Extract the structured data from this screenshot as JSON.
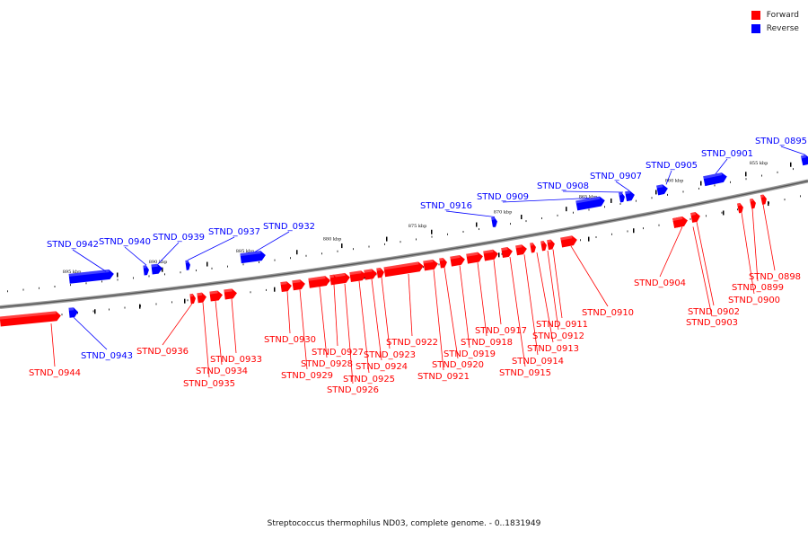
{
  "caption": "Streptococcus thermophilus ND03, complete genome. - 0..1831949",
  "legend": [
    {
      "label": "Forward",
      "color": "#ff0000"
    },
    {
      "label": "Reverse",
      "color": "#0000ff"
    }
  ],
  "colors": {
    "forward": "#ff0000",
    "reverse": "#0000ff",
    "backbone": "#808080"
  },
  "ticks": [
    "855 kbp",
    "860 kbp",
    "865 kbp",
    "870 kbp",
    "875 kbp",
    "880 kbp",
    "885 kbp",
    "890 kbp",
    "895 kbp"
  ],
  "genes": [
    {
      "id": "STND_0895",
      "strand": "reverse"
    },
    {
      "id": "STND_0898",
      "strand": "forward"
    },
    {
      "id": "STND_0899",
      "strand": "forward"
    },
    {
      "id": "STND_0900",
      "strand": "forward"
    },
    {
      "id": "STND_0901",
      "strand": "reverse"
    },
    {
      "id": "STND_0902",
      "strand": "forward"
    },
    {
      "id": "STND_0903",
      "strand": "forward"
    },
    {
      "id": "STND_0904",
      "strand": "forward"
    },
    {
      "id": "STND_0905",
      "strand": "reverse"
    },
    {
      "id": "STND_0907",
      "strand": "reverse"
    },
    {
      "id": "STND_0908",
      "strand": "reverse"
    },
    {
      "id": "STND_0909",
      "strand": "reverse"
    },
    {
      "id": "STND_0910",
      "strand": "forward"
    },
    {
      "id": "STND_0911",
      "strand": "forward"
    },
    {
      "id": "STND_0912",
      "strand": "forward"
    },
    {
      "id": "STND_0913",
      "strand": "forward"
    },
    {
      "id": "STND_0914",
      "strand": "forward"
    },
    {
      "id": "STND_0915",
      "strand": "forward"
    },
    {
      "id": "STND_0916",
      "strand": "reverse"
    },
    {
      "id": "STND_0917",
      "strand": "forward"
    },
    {
      "id": "STND_0918",
      "strand": "forward"
    },
    {
      "id": "STND_0919",
      "strand": "forward"
    },
    {
      "id": "STND_0920",
      "strand": "forward"
    },
    {
      "id": "STND_0921",
      "strand": "forward"
    },
    {
      "id": "STND_0922",
      "strand": "forward"
    },
    {
      "id": "STND_0923",
      "strand": "forward"
    },
    {
      "id": "STND_0924",
      "strand": "forward"
    },
    {
      "id": "STND_0925",
      "strand": "forward"
    },
    {
      "id": "STND_0926",
      "strand": "forward"
    },
    {
      "id": "STND_0927",
      "strand": "forward"
    },
    {
      "id": "STND_0928",
      "strand": "forward"
    },
    {
      "id": "STND_0929",
      "strand": "forward"
    },
    {
      "id": "STND_0930",
      "strand": "forward"
    },
    {
      "id": "STND_0932",
      "strand": "reverse"
    },
    {
      "id": "STND_0933",
      "strand": "forward"
    },
    {
      "id": "STND_0934",
      "strand": "forward"
    },
    {
      "id": "STND_0935",
      "strand": "forward"
    },
    {
      "id": "STND_0936",
      "strand": "forward"
    },
    {
      "id": "STND_0937",
      "strand": "reverse"
    },
    {
      "id": "STND_0939",
      "strand": "reverse"
    },
    {
      "id": "STND_0940",
      "strand": "reverse"
    },
    {
      "id": "STND_0942",
      "strand": "reverse"
    },
    {
      "id": "STND_0943",
      "strand": "reverse"
    },
    {
      "id": "STND_0944",
      "strand": "forward"
    }
  ]
}
